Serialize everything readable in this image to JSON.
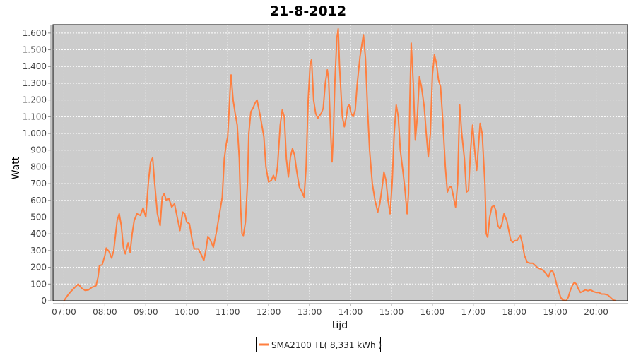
{
  "chart_data": {
    "type": "line",
    "title": "21-8-2012",
    "xlabel": "tijd",
    "ylabel": "Watt",
    "xlim": [
      "06:44",
      "20:46"
    ],
    "ylim": [
      0,
      1650
    ],
    "grid": true,
    "legend_position": "bottom",
    "x_ticks": [
      "07:00",
      "08:00",
      "09:00",
      "10:00",
      "11:00",
      "12:00",
      "13:00",
      "14:00",
      "15:00",
      "16:00",
      "17:00",
      "18:00",
      "19:00",
      "20:00"
    ],
    "y_ticks": [
      0,
      100,
      200,
      300,
      400,
      500,
      600,
      700,
      800,
      900,
      1000,
      1100,
      1200,
      1300,
      1400,
      1500,
      1600
    ],
    "y_tick_labels": [
      "0",
      "100",
      "200",
      "300",
      "400",
      "500",
      "600",
      "700",
      "800",
      "900",
      "1.000",
      "1.100",
      "1.200",
      "1.300",
      "1.400",
      "1.500",
      "1.600"
    ],
    "colors": {
      "plot_background": "#cccccc",
      "grid": "#ffffff",
      "series": "#ff7f3f"
    },
    "series": [
      {
        "name": "SMA2100 TL( 8,331 kWh )",
        "points": [
          [
            "07:00",
            0
          ],
          [
            "07:05",
            30
          ],
          [
            "07:10",
            55
          ],
          [
            "07:16",
            80
          ],
          [
            "07:21",
            100
          ],
          [
            "07:26",
            75
          ],
          [
            "07:31",
            62
          ],
          [
            "07:36",
            65
          ],
          [
            "07:41",
            80
          ],
          [
            "07:47",
            90
          ],
          [
            "07:50",
            140
          ],
          [
            "07:52",
            210
          ],
          [
            "07:56",
            215
          ],
          [
            "08:00",
            270
          ],
          [
            "08:02",
            315
          ],
          [
            "08:06",
            295
          ],
          [
            "08:10",
            255
          ],
          [
            "08:13",
            300
          ],
          [
            "08:18",
            480
          ],
          [
            "08:21",
            520
          ],
          [
            "08:24",
            450
          ],
          [
            "08:27",
            320
          ],
          [
            "08:30",
            280
          ],
          [
            "08:34",
            345
          ],
          [
            "08:37",
            290
          ],
          [
            "08:40",
            400
          ],
          [
            "08:43",
            480
          ],
          [
            "08:47",
            520
          ],
          [
            "08:52",
            510
          ],
          [
            "08:56",
            555
          ],
          [
            "09:00",
            500
          ],
          [
            "09:04",
            720
          ],
          [
            "09:07",
            830
          ],
          [
            "09:10",
            855
          ],
          [
            "09:13",
            700
          ],
          [
            "09:17",
            520
          ],
          [
            "09:21",
            450
          ],
          [
            "09:24",
            620
          ],
          [
            "09:27",
            640
          ],
          [
            "09:30",
            600
          ],
          [
            "09:34",
            610
          ],
          [
            "09:38",
            560
          ],
          [
            "09:42",
            580
          ],
          [
            "09:47",
            480
          ],
          [
            "09:50",
            420
          ],
          [
            "09:54",
            530
          ],
          [
            "09:57",
            520
          ],
          [
            "10:00",
            470
          ],
          [
            "10:04",
            460
          ],
          [
            "10:08",
            360
          ],
          [
            "10:11",
            310
          ],
          [
            "10:17",
            310
          ],
          [
            "10:22",
            270
          ],
          [
            "10:25",
            240
          ],
          [
            "10:28",
            300
          ],
          [
            "10:31",
            385
          ],
          [
            "10:35",
            360
          ],
          [
            "10:39",
            320
          ],
          [
            "10:43",
            400
          ],
          [
            "10:48",
            520
          ],
          [
            "10:52",
            620
          ],
          [
            "10:55",
            850
          ],
          [
            "10:58",
            940
          ],
          [
            "11:00",
            980
          ],
          [
            "11:02",
            1130
          ],
          [
            "11:04",
            1290
          ],
          [
            "11:05",
            1350
          ],
          [
            "11:08",
            1200
          ],
          [
            "11:11",
            1120
          ],
          [
            "11:14",
            1050
          ],
          [
            "11:17",
            850
          ],
          [
            "11:19",
            560
          ],
          [
            "11:21",
            400
          ],
          [
            "11:23",
            390
          ],
          [
            "11:26",
            470
          ],
          [
            "11:29",
            700
          ],
          [
            "11:31",
            1000
          ],
          [
            "11:34",
            1130
          ],
          [
            "11:37",
            1150
          ],
          [
            "11:40",
            1180
          ],
          [
            "11:43",
            1200
          ],
          [
            "11:47",
            1120
          ],
          [
            "11:50",
            1050
          ],
          [
            "11:53",
            980
          ],
          [
            "11:56",
            800
          ],
          [
            "12:00",
            710
          ],
          [
            "12:04",
            720
          ],
          [
            "12:07",
            750
          ],
          [
            "12:10",
            720
          ],
          [
            "12:13",
            800
          ],
          [
            "12:17",
            1050
          ],
          [
            "12:20",
            1140
          ],
          [
            "12:23",
            1100
          ],
          [
            "12:26",
            850
          ],
          [
            "12:29",
            740
          ],
          [
            "12:32",
            860
          ],
          [
            "12:35",
            910
          ],
          [
            "12:38",
            870
          ],
          [
            "12:41",
            780
          ],
          [
            "12:45",
            680
          ],
          [
            "12:49",
            650
          ],
          [
            "12:52",
            620
          ],
          [
            "12:55",
            800
          ],
          [
            "12:58",
            1200
          ],
          [
            "13:01",
            1420
          ],
          [
            "13:03",
            1440
          ],
          [
            "13:06",
            1200
          ],
          [
            "13:09",
            1120
          ],
          [
            "13:12",
            1090
          ],
          [
            "13:17",
            1120
          ],
          [
            "13:20",
            1150
          ],
          [
            "13:23",
            1300
          ],
          [
            "13:26",
            1380
          ],
          [
            "13:28",
            1320
          ],
          [
            "13:31",
            1000
          ],
          [
            "13:33",
            830
          ],
          [
            "13:35",
            1000
          ],
          [
            "13:37",
            1300
          ],
          [
            "13:40",
            1570
          ],
          [
            "13:42",
            1625
          ],
          [
            "13:44",
            1400
          ],
          [
            "13:48",
            1100
          ],
          [
            "13:51",
            1040
          ],
          [
            "13:54",
            1100
          ],
          [
            "13:56",
            1160
          ],
          [
            "13:58",
            1170
          ],
          [
            "14:01",
            1120
          ],
          [
            "14:04",
            1100
          ],
          [
            "14:07",
            1140
          ],
          [
            "14:10",
            1300
          ],
          [
            "14:14",
            1460
          ],
          [
            "14:19",
            1590
          ],
          [
            "14:22",
            1450
          ],
          [
            "14:25",
            1150
          ],
          [
            "14:28",
            900
          ],
          [
            "14:32",
            700
          ],
          [
            "14:36",
            600
          ],
          [
            "14:40",
            530
          ],
          [
            "14:43",
            580
          ],
          [
            "14:47",
            700
          ],
          [
            "14:49",
            770
          ],
          [
            "14:52",
            720
          ],
          [
            "14:55",
            600
          ],
          [
            "14:58",
            520
          ],
          [
            "15:01",
            700
          ],
          [
            "15:04",
            1000
          ],
          [
            "15:07",
            1170
          ],
          [
            "15:10",
            1100
          ],
          [
            "15:13",
            900
          ],
          [
            "15:17",
            770
          ],
          [
            "15:20",
            660
          ],
          [
            "15:23",
            520
          ],
          [
            "15:25",
            640
          ],
          [
            "15:27",
            1200
          ],
          [
            "15:29",
            1540
          ],
          [
            "15:32",
            1300
          ],
          [
            "15:35",
            960
          ],
          [
            "15:38",
            1100
          ],
          [
            "15:41",
            1340
          ],
          [
            "15:44",
            1280
          ],
          [
            "15:48",
            1160
          ],
          [
            "15:51",
            1000
          ],
          [
            "15:54",
            860
          ],
          [
            "15:57",
            1000
          ],
          [
            "16:00",
            1350
          ],
          [
            "16:03",
            1470
          ],
          [
            "16:06",
            1420
          ],
          [
            "16:09",
            1320
          ],
          [
            "16:12",
            1280
          ],
          [
            "16:15",
            1100
          ],
          [
            "16:19",
            800
          ],
          [
            "16:22",
            650
          ],
          [
            "16:25",
            680
          ],
          [
            "16:28",
            680
          ],
          [
            "16:31",
            620
          ],
          [
            "16:34",
            560
          ],
          [
            "16:37",
            700
          ],
          [
            "16:40",
            1170
          ],
          [
            "16:43",
            1000
          ],
          [
            "16:47",
            850
          ],
          [
            "16:50",
            650
          ],
          [
            "16:53",
            660
          ],
          [
            "16:56",
            900
          ],
          [
            "16:59",
            1050
          ],
          [
            "17:02",
            900
          ],
          [
            "17:05",
            780
          ],
          [
            "17:08",
            950
          ],
          [
            "17:10",
            1060
          ],
          [
            "17:13",
            1000
          ],
          [
            "17:17",
            700
          ],
          [
            "17:19",
            400
          ],
          [
            "17:21",
            380
          ],
          [
            "17:24",
            500
          ],
          [
            "17:27",
            560
          ],
          [
            "17:30",
            570
          ],
          [
            "17:33",
            540
          ],
          [
            "17:36",
            450
          ],
          [
            "17:39",
            430
          ],
          [
            "17:42",
            460
          ],
          [
            "17:45",
            520
          ],
          [
            "17:49",
            480
          ],
          [
            "17:52",
            420
          ],
          [
            "17:55",
            360
          ],
          [
            "17:58",
            350
          ],
          [
            "18:01",
            360
          ],
          [
            "18:04",
            360
          ],
          [
            "18:07",
            380
          ],
          [
            "18:09",
            390
          ],
          [
            "18:12",
            340
          ],
          [
            "18:15",
            270
          ],
          [
            "18:19",
            230
          ],
          [
            "18:23",
            225
          ],
          [
            "18:27",
            225
          ],
          [
            "18:31",
            210
          ],
          [
            "18:35",
            195
          ],
          [
            "18:39",
            190
          ],
          [
            "18:43",
            180
          ],
          [
            "18:47",
            160
          ],
          [
            "18:50",
            140
          ],
          [
            "18:53",
            175
          ],
          [
            "18:56",
            180
          ],
          [
            "18:59",
            150
          ],
          [
            "19:02",
            100
          ],
          [
            "19:05",
            60
          ],
          [
            "19:08",
            20
          ],
          [
            "19:11",
            5
          ],
          [
            "19:16",
            0
          ],
          [
            "19:19",
            20
          ],
          [
            "19:22",
            60
          ],
          [
            "19:25",
            90
          ],
          [
            "19:28",
            110
          ],
          [
            "19:31",
            100
          ],
          [
            "19:34",
            70
          ],
          [
            "19:37",
            50
          ],
          [
            "19:40",
            55
          ],
          [
            "19:44",
            65
          ],
          [
            "19:48",
            60
          ],
          [
            "19:52",
            65
          ],
          [
            "19:56",
            55
          ],
          [
            "20:00",
            50
          ],
          [
            "20:04",
            50
          ],
          [
            "20:08",
            40
          ],
          [
            "20:12",
            40
          ],
          [
            "20:17",
            35
          ],
          [
            "20:21",
            20
          ],
          [
            "20:25",
            5
          ],
          [
            "20:29",
            0
          ]
        ]
      }
    ]
  }
}
